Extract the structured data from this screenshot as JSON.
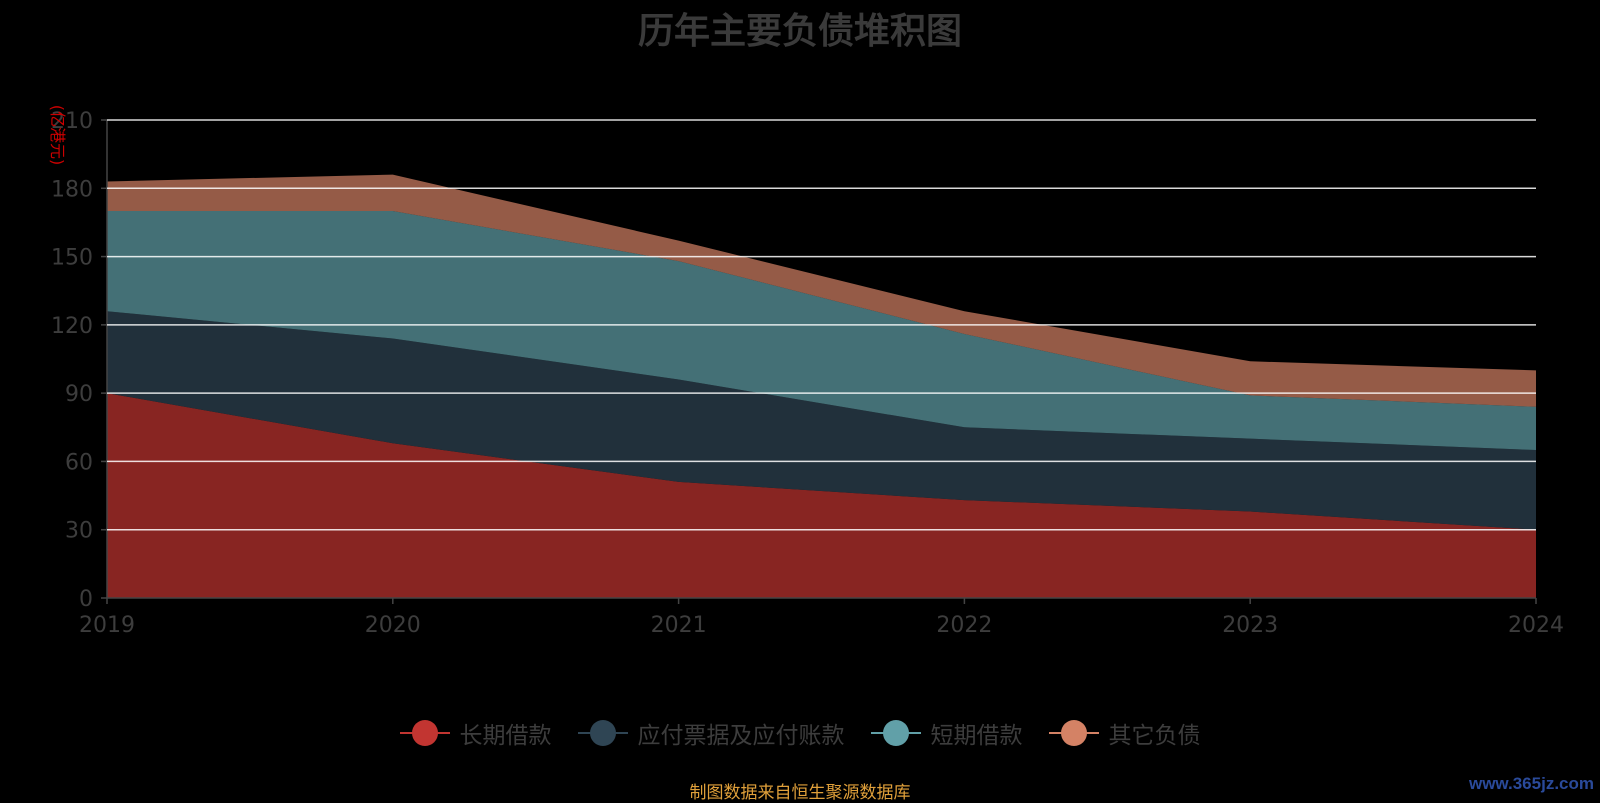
{
  "chart_data": {
    "type": "area",
    "stacked": true,
    "title": "历年主要负债堆积图",
    "ylabel": "(亿港元)",
    "x": [
      "2019",
      "2020",
      "2021",
      "2022",
      "2023",
      "2024"
    ],
    "ylim": [
      0,
      210
    ],
    "yticks": [
      0,
      30,
      60,
      90,
      120,
      150,
      180,
      210
    ],
    "grid": true,
    "legend_position": "bottom",
    "series": [
      {
        "name": "长期借款",
        "color": "#c23531",
        "values": [
          90,
          68,
          51,
          43,
          38,
          30
        ]
      },
      {
        "name": "应付票据及应付账款",
        "color": "#2f4554",
        "values": [
          36,
          46,
          45,
          32,
          32,
          35
        ]
      },
      {
        "name": "短期借款",
        "color": "#61a0a8",
        "values": [
          44,
          56,
          52,
          41,
          19,
          19
        ]
      },
      {
        "name": "其它负债",
        "color": "#d48265",
        "values": [
          13,
          16,
          9,
          10,
          15,
          16
        ]
      }
    ]
  },
  "footer": {
    "source_note": "制图数据来自恒生聚源数据库",
    "watermark": "www.365jz.com"
  }
}
